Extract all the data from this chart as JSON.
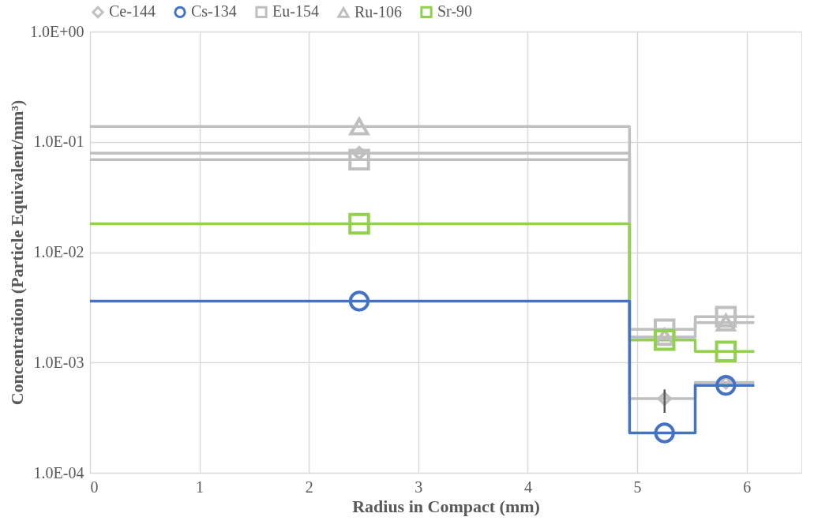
{
  "chart_data": {
    "type": "scatter",
    "xlabel": "Radius in Compact (mm)",
    "ylabel": "Concentration (Particle Equivalent/mm³)",
    "xlim": [
      0,
      6.5
    ],
    "xticks": [
      0,
      1,
      2,
      3,
      4,
      5,
      6
    ],
    "ylim": [
      0.0001,
      1
    ],
    "yticks": [
      {
        "value": 0.0001,
        "label": "1.0E-04"
      },
      {
        "value": 0.001,
        "label": "1.0E-03"
      },
      {
        "value": 0.01,
        "label": "1.0E-02"
      },
      {
        "value": 0.1,
        "label": "1.0E-01"
      },
      {
        "value": 1,
        "label": "1.0E+00"
      }
    ],
    "log": "y",
    "grid": true,
    "legend": "top",
    "series": [
      {
        "name": "Ce-144",
        "marker": "diamond",
        "color": "#bfbfbf",
        "x": [
          2.46,
          5.25,
          5.81
        ],
        "values": [
          0.079,
          0.00047,
          0.00066
        ],
        "errors": [
          null,
          [
            0.00035,
            0.00057
          ],
          null
        ]
      },
      {
        "name": "Cs-134",
        "marker": "circle",
        "color": "#4472c4",
        "x": [
          2.46,
          5.25,
          5.81
        ],
        "values": [
          0.0036,
          0.00023,
          0.00062
        ]
      },
      {
        "name": "Eu-154",
        "marker": "square",
        "color": "#bfbfbf",
        "x": [
          2.46,
          5.25,
          5.81
        ],
        "values": [
          0.069,
          0.002,
          0.0026
        ]
      },
      {
        "name": "Ru-106",
        "marker": "triangle",
        "color": "#bfbfbf",
        "x": [
          2.46,
          5.25,
          5.81
        ],
        "values": [
          0.138,
          0.0017,
          0.0023
        ]
      },
      {
        "name": "Sr-90",
        "marker": "square",
        "color": "#92d050",
        "x": [
          2.46,
          5.25,
          5.81
        ],
        "values": [
          0.0181,
          0.0016,
          0.00126
        ]
      },
      {
        "type": "step",
        "color": "#bfbfbf",
        "x": [
          0,
          4.93,
          5.53,
          6.07
        ],
        "values": [
          0.079,
          0.00047,
          0.00066,
          0.00066
        ]
      },
      {
        "type": "step",
        "color": "#bfbfbf",
        "x": [
          0,
          4.93,
          5.53,
          6.07
        ],
        "values": [
          0.069,
          0.002,
          0.0026,
          0.0026
        ]
      },
      {
        "type": "step",
        "color": "#bfbfbf",
        "x": [
          0,
          4.93,
          5.53,
          6.07
        ],
        "values": [
          0.138,
          0.0017,
          0.0023,
          0.0023
        ]
      },
      {
        "type": "step",
        "color": "#92d050",
        "x": [
          0,
          4.93,
          5.53,
          6.07
        ],
        "values": [
          0.0181,
          0.0016,
          0.00126,
          0.00126
        ]
      },
      {
        "type": "step",
        "color": "#4472c4",
        "x": [
          0,
          4.93,
          5.53,
          6.07
        ],
        "values": [
          0.0036,
          0.00023,
          0.00062,
          0.00062
        ]
      }
    ]
  }
}
